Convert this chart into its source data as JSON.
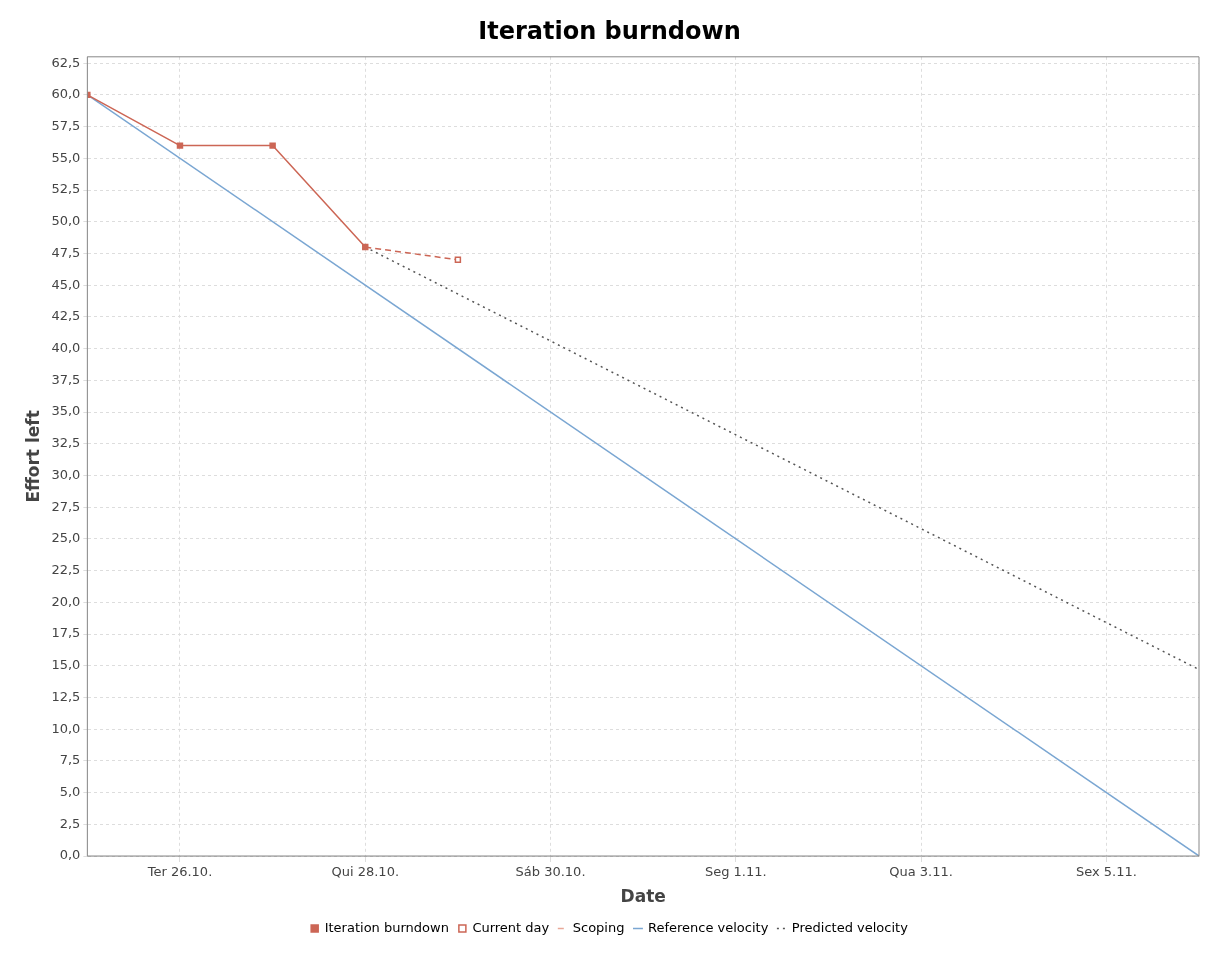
{
  "chart_data": {
    "type": "line",
    "title": "Iteration burndown",
    "xlabel": "Date",
    "ylabel": "Effort left",
    "xlim": [
      "--10-25",
      "--11-06"
    ],
    "xticks": [
      {
        "value": "--10-26",
        "label": "Ter 26.10."
      },
      {
        "value": "--10-28",
        "label": "Qui 28.10."
      },
      {
        "value": "--10-30",
        "label": "Sáb 30.10."
      },
      {
        "value": "--11-01",
        "label": "Seg 1.11."
      },
      {
        "value": "--11-03",
        "label": "Qua 3.11."
      },
      {
        "value": "--11-05",
        "label": "Sex 5.11."
      }
    ],
    "ylim": [
      0,
      63
    ],
    "yticks": [
      {
        "value": 0,
        "label": "0,0"
      },
      {
        "value": 2.5,
        "label": "2,5"
      },
      {
        "value": 5,
        "label": "5,0"
      },
      {
        "value": 7.5,
        "label": "7,5"
      },
      {
        "value": 10,
        "label": "10,0"
      },
      {
        "value": 12.5,
        "label": "12,5"
      },
      {
        "value": 15,
        "label": "15,0"
      },
      {
        "value": 17.5,
        "label": "17,5"
      },
      {
        "value": 20,
        "label": "20,0"
      },
      {
        "value": 22.5,
        "label": "22,5"
      },
      {
        "value": 25,
        "label": "25,0"
      },
      {
        "value": 27.5,
        "label": "27,5"
      },
      {
        "value": 30,
        "label": "30,0"
      },
      {
        "value": 32.5,
        "label": "32,5"
      },
      {
        "value": 35,
        "label": "35,0"
      },
      {
        "value": 37.5,
        "label": "37,5"
      },
      {
        "value": 40,
        "label": "40,0"
      },
      {
        "value": 42.5,
        "label": "42,5"
      },
      {
        "value": 45,
        "label": "45,0"
      },
      {
        "value": 47.5,
        "label": "47,5"
      },
      {
        "value": 50,
        "label": "50,0"
      },
      {
        "value": 52.5,
        "label": "52,5"
      },
      {
        "value": 55,
        "label": "55,0"
      },
      {
        "value": 57.5,
        "label": "57,5"
      },
      {
        "value": 60,
        "label": "60,0"
      },
      {
        "value": 62.5,
        "label": "62,5"
      }
    ],
    "grid": true,
    "legend": "bottom",
    "series": [
      {
        "name": "Iteration burndown",
        "color": "#cc6655",
        "x": [
          "--10-25",
          "--10-26",
          "--10-27",
          "--10-28"
        ],
        "values": [
          60,
          56,
          56,
          48
        ],
        "line_style": "solid",
        "marker": "square"
      },
      {
        "name": "Current day",
        "color": "#cc6655",
        "x": [
          "--10-28",
          "--10-29"
        ],
        "values": [
          48,
          47
        ],
        "line_style": "dashed",
        "marker": "square"
      },
      {
        "name": "Scoping",
        "color": "#e8a898",
        "line_style": "dashed",
        "marker": "none"
      },
      {
        "name": "Reference velocity",
        "color": "#7aa6d2",
        "x": [
          "--10-25",
          "--11-06"
        ],
        "values": [
          60,
          0
        ],
        "line_style": "solid",
        "marker": "none"
      },
      {
        "name": "Predicted velocity",
        "color": "#555555",
        "x": [
          "--10-28",
          "--11-06"
        ],
        "values": [
          48,
          14.7
        ],
        "line_style": "dotted",
        "marker": "none"
      }
    ]
  }
}
